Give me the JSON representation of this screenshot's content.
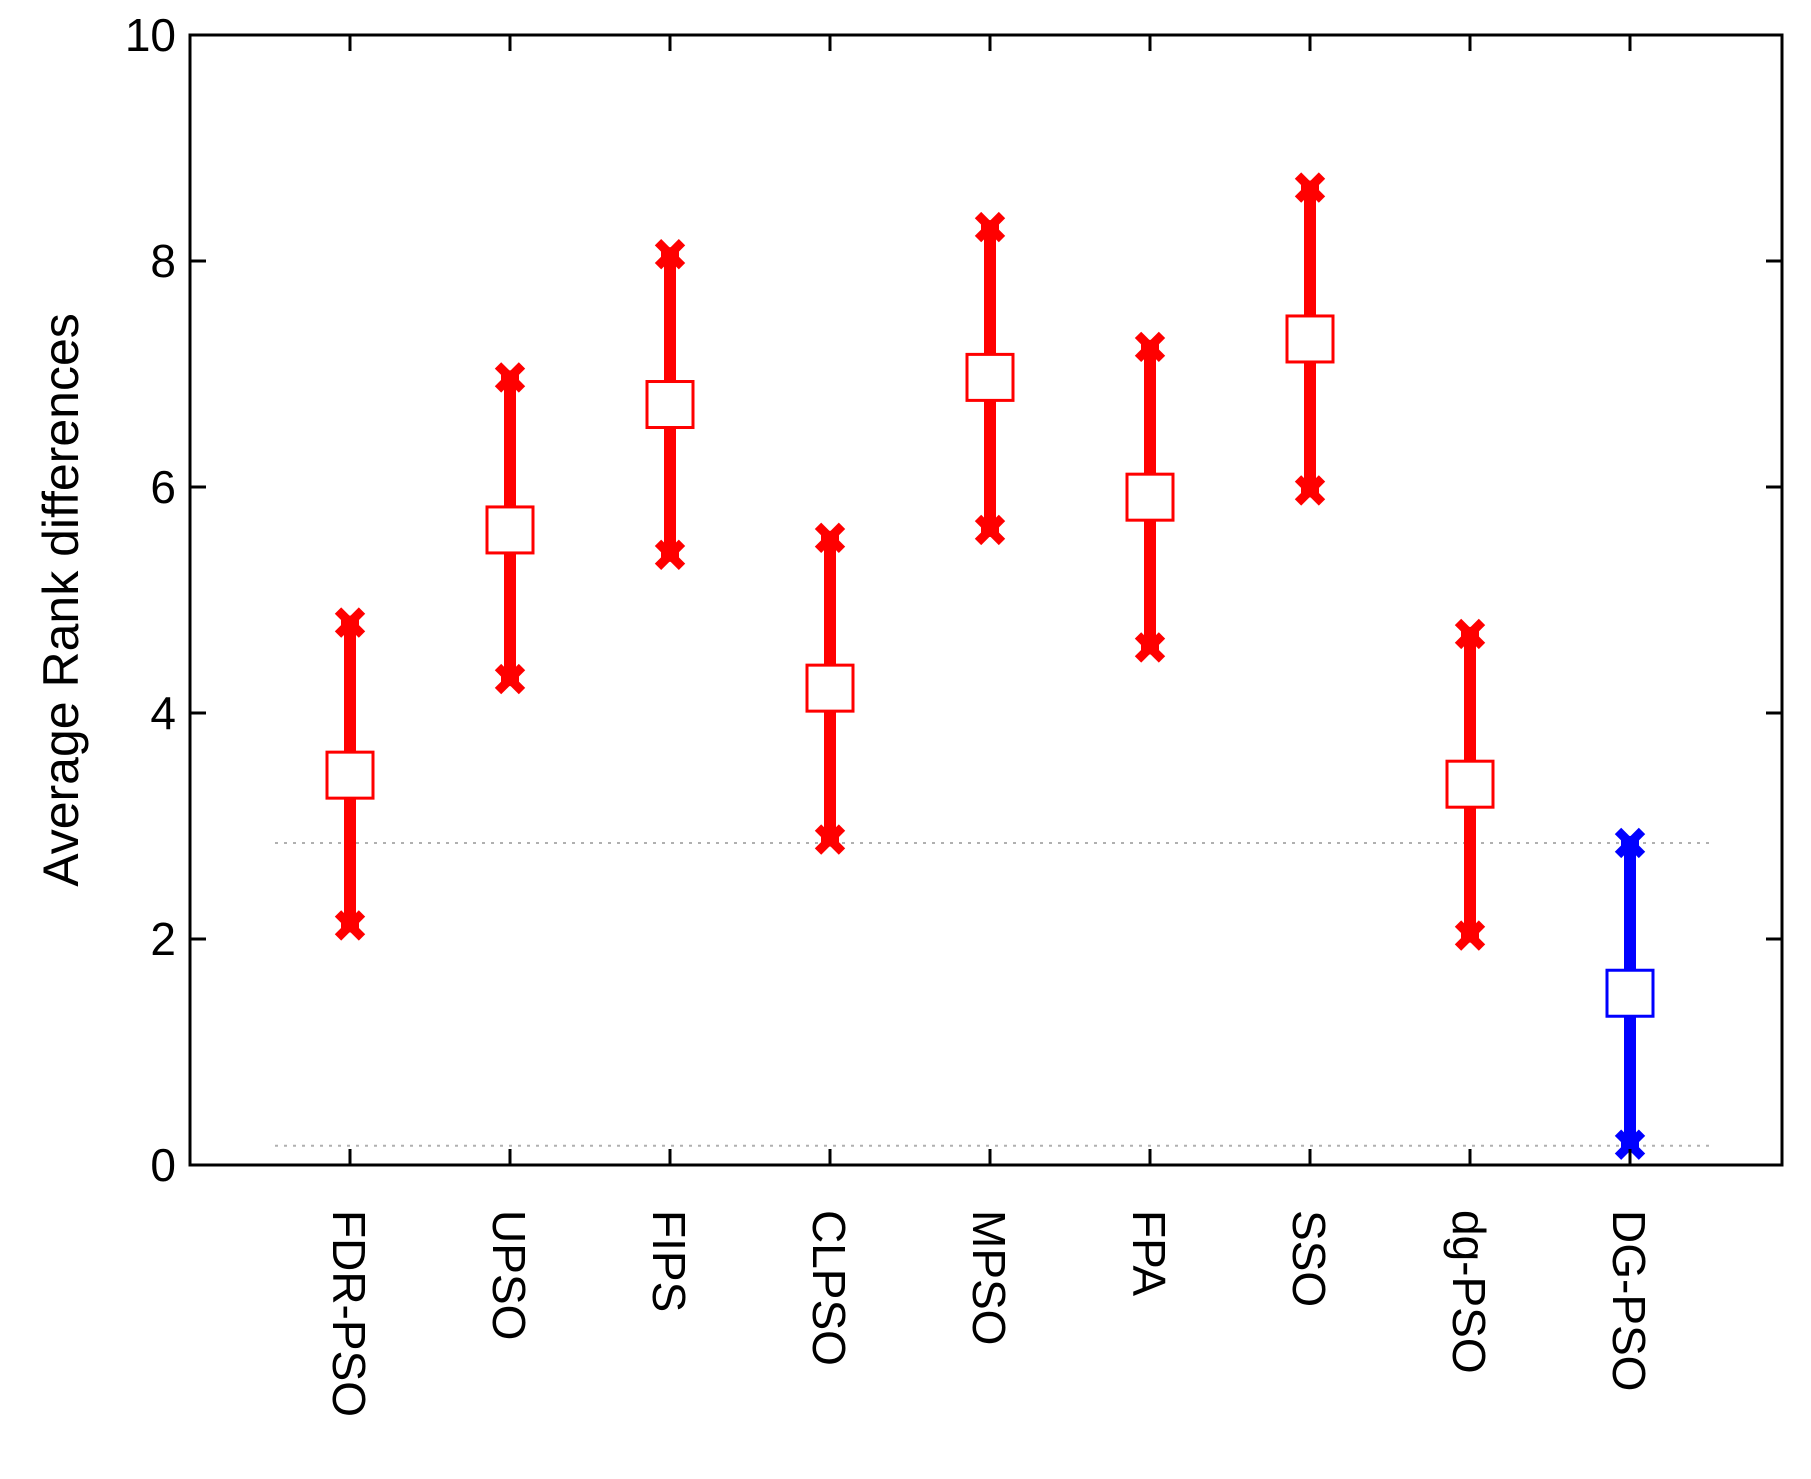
{
  "chart_data": {
    "type": "scatter",
    "xlabel": "",
    "ylabel": "Average Rank differences",
    "ylim": [
      0,
      10
    ],
    "yticks": [
      "0",
      "2",
      "4",
      "6",
      "8",
      "10"
    ],
    "grid": false,
    "reference_lines": [
      2.85,
      0.17
    ],
    "series": [
      {
        "label": "FDR-PSO",
        "mean": 3.45,
        "low": 2.12,
        "high": 4.8,
        "color": "#ff0000"
      },
      {
        "label": "UPSO",
        "mean": 5.62,
        "low": 4.3,
        "high": 6.97,
        "color": "#ff0000"
      },
      {
        "label": "FIPS",
        "mean": 6.73,
        "low": 5.4,
        "high": 8.06,
        "color": "#ff0000"
      },
      {
        "label": "CLPSO",
        "mean": 4.22,
        "low": 2.88,
        "high": 5.55,
        "color": "#ff0000"
      },
      {
        "label": "MPSO",
        "mean": 6.97,
        "low": 5.62,
        "high": 8.3,
        "color": "#ff0000"
      },
      {
        "label": "FPA",
        "mean": 5.91,
        "low": 4.58,
        "high": 7.24,
        "color": "#ff0000"
      },
      {
        "label": "SSO",
        "mean": 7.31,
        "low": 5.97,
        "high": 8.65,
        "color": "#ff0000"
      },
      {
        "label": "dg-PSO",
        "mean": 3.37,
        "low": 2.03,
        "high": 4.7,
        "color": "#ff0000"
      },
      {
        "label": "DG-PSO",
        "mean": 1.52,
        "low": 0.18,
        "high": 2.85,
        "color": "#0000ff"
      }
    ]
  }
}
